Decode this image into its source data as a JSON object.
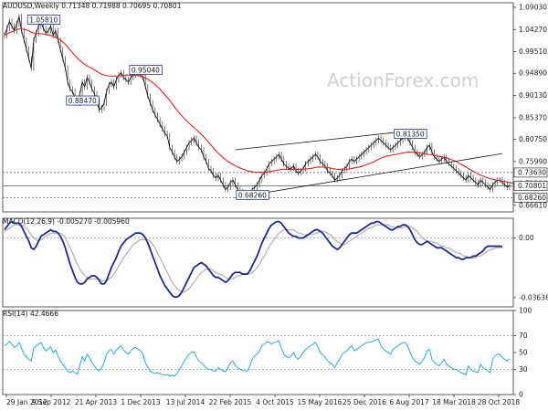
{
  "chart_data": {
    "type": "line",
    "symbol": "AUDUSD",
    "timeframe": "Weekly",
    "header_values": [
      "0.71348",
      "0.71988",
      "0.70695",
      "0.70801"
    ],
    "watermark": "ActionForex.com",
    "x_tick_labels": [
      "29 Jan 2012",
      "9 Sep 2012",
      "21 Apr 2013",
      "1 Dec 2013",
      "13 Jul 2014",
      "22 Feb 2015",
      "4 Oct 2015",
      "15 May 2016",
      "25 Dec 2016",
      "6 Aug 2017",
      "18 Mar 2018",
      "28 Oct 2018"
    ],
    "price_panel": {
      "y_tick_labels": [
        "1.09030",
        "1.04270",
        "0.99510",
        "0.94890",
        "0.90130",
        "0.85370",
        "0.80750",
        "0.75990",
        "0.71230",
        "0.66610"
      ],
      "y_ticks": [
        1.0903,
        1.0427,
        0.9951,
        0.9489,
        0.9013,
        0.8537,
        0.8075,
        0.7599,
        0.7123,
        0.6661
      ],
      "ylim": [
        0.652,
        1.1
      ],
      "price_tags": [
        {
          "label": "0.73630",
          "value": 0.7363,
          "color": "#ffffff"
        },
        {
          "label": "0.70801",
          "value": 0.70801,
          "color": "#ffffff"
        },
        {
          "label": "0.68260",
          "value": 0.6826,
          "color": "#ffffff"
        }
      ],
      "annotations": [
        {
          "label": "1.05810",
          "i": 14,
          "value": 1.0581
        },
        {
          "label": "0.95040",
          "i": 56,
          "value": 0.9504
        },
        {
          "label": "0.88470",
          "i": 30,
          "value": 0.8847
        },
        {
          "label": "0.81350",
          "i": 165,
          "value": 0.8135
        },
        {
          "label": "0.68260",
          "i": 100,
          "value": 0.6826
        }
      ],
      "close": [
        1.03,
        1.045,
        1.06,
        1.05,
        1.04,
        1.055,
        1.07,
        1.04,
        1.02,
        1.0,
        0.98,
        0.96,
        1.02,
        1.035,
        1.05,
        1.058,
        1.045,
        1.035,
        1.04,
        1.05,
        1.03,
        1.04,
        1.02,
        1.0,
        0.98,
        0.96,
        0.93,
        0.915,
        0.91,
        0.895,
        0.885,
        0.905,
        0.93,
        0.92,
        0.94,
        0.93,
        0.915,
        0.905,
        0.89,
        0.87,
        0.875,
        0.885,
        0.91,
        0.925,
        0.93,
        0.92,
        0.935,
        0.945,
        0.95,
        0.94,
        0.935,
        0.93,
        0.94,
        0.945,
        0.95,
        0.948,
        0.945,
        0.94,
        0.92,
        0.9,
        0.885,
        0.87,
        0.86,
        0.85,
        0.84,
        0.83,
        0.82,
        0.815,
        0.79,
        0.78,
        0.77,
        0.76,
        0.765,
        0.77,
        0.78,
        0.79,
        0.8,
        0.805,
        0.81,
        0.8,
        0.79,
        0.785,
        0.77,
        0.76,
        0.745,
        0.74,
        0.73,
        0.725,
        0.73,
        0.72,
        0.71,
        0.7,
        0.705,
        0.715,
        0.72,
        0.71,
        0.7,
        0.695,
        0.69,
        0.685,
        0.683,
        0.69,
        0.7,
        0.705,
        0.71,
        0.72,
        0.73,
        0.735,
        0.745,
        0.755,
        0.76,
        0.765,
        0.77,
        0.775,
        0.765,
        0.755,
        0.75,
        0.745,
        0.745,
        0.75,
        0.74,
        0.735,
        0.74,
        0.745,
        0.755,
        0.76,
        0.765,
        0.77,
        0.775,
        0.77,
        0.76,
        0.755,
        0.75,
        0.74,
        0.735,
        0.73,
        0.72,
        0.725,
        0.73,
        0.74,
        0.745,
        0.75,
        0.76,
        0.765,
        0.76,
        0.765,
        0.77,
        0.775,
        0.78,
        0.785,
        0.79,
        0.795,
        0.8,
        0.805,
        0.81,
        0.805,
        0.8,
        0.795,
        0.79,
        0.785,
        0.79,
        0.795,
        0.8,
        0.805,
        0.81,
        0.812,
        0.81,
        0.8,
        0.79,
        0.78,
        0.775,
        0.77,
        0.775,
        0.78,
        0.79,
        0.795,
        0.78,
        0.77,
        0.765,
        0.76,
        0.765,
        0.77,
        0.76,
        0.755,
        0.75,
        0.745,
        0.74,
        0.735,
        0.73,
        0.725,
        0.72,
        0.73,
        0.725,
        0.72,
        0.715,
        0.71,
        0.72,
        0.715,
        0.71,
        0.705,
        0.7,
        0.71,
        0.715,
        0.72,
        0.72,
        0.715,
        0.71,
        0.705,
        0.70801
      ],
      "ma": [
        1.03,
        1.033,
        1.036,
        1.038,
        1.04,
        1.042,
        1.044,
        1.044,
        1.043,
        1.042,
        1.04,
        1.037,
        1.035,
        1.034,
        1.034,
        1.034,
        1.033,
        1.032,
        1.031,
        1.03,
        1.028,
        1.026,
        1.023,
        1.02,
        1.016,
        1.011,
        1.005,
        0.999,
        0.993,
        0.987,
        0.981,
        0.976,
        0.972,
        0.968,
        0.965,
        0.962,
        0.959,
        0.956,
        0.953,
        0.95,
        0.947,
        0.945,
        0.944,
        0.943,
        0.943,
        0.943,
        0.943,
        0.943,
        0.944,
        0.944,
        0.945,
        0.945,
        0.945,
        0.945,
        0.945,
        0.944,
        0.943,
        0.941,
        0.939,
        0.936,
        0.933,
        0.929,
        0.925,
        0.92,
        0.915,
        0.909,
        0.903,
        0.897,
        0.891,
        0.884,
        0.877,
        0.87,
        0.864,
        0.858,
        0.852,
        0.847,
        0.842,
        0.837,
        0.833,
        0.828,
        0.823,
        0.818,
        0.813,
        0.807,
        0.801,
        0.795,
        0.789,
        0.783,
        0.778,
        0.773,
        0.768,
        0.764,
        0.76,
        0.757,
        0.754,
        0.751,
        0.748,
        0.746,
        0.744,
        0.742,
        0.74,
        0.739,
        0.738,
        0.737,
        0.737,
        0.737,
        0.737,
        0.737,
        0.737,
        0.738,
        0.739,
        0.74,
        0.741,
        0.742,
        0.743,
        0.743,
        0.743,
        0.743,
        0.743,
        0.743,
        0.743,
        0.743,
        0.743,
        0.743,
        0.744,
        0.744,
        0.745,
        0.746,
        0.747,
        0.748,
        0.748,
        0.748,
        0.748,
        0.747,
        0.746,
        0.745,
        0.744,
        0.743,
        0.743,
        0.743,
        0.743,
        0.743,
        0.744,
        0.745,
        0.746,
        0.747,
        0.748,
        0.749,
        0.751,
        0.753,
        0.755,
        0.757,
        0.759,
        0.762,
        0.765,
        0.767,
        0.769,
        0.771,
        0.772,
        0.773,
        0.774,
        0.775,
        0.776,
        0.777,
        0.778,
        0.779,
        0.78,
        0.78,
        0.78,
        0.78,
        0.779,
        0.778,
        0.777,
        0.776,
        0.775,
        0.775,
        0.774,
        0.773,
        0.772,
        0.771,
        0.77,
        0.769,
        0.768,
        0.766,
        0.764,
        0.762,
        0.76,
        0.757,
        0.754,
        0.751,
        0.748,
        0.745,
        0.742,
        0.739,
        0.736,
        0.733,
        0.731,
        0.729,
        0.727,
        0.725,
        0.723,
        0.722,
        0.721,
        0.72,
        0.719,
        0.718,
        0.717,
        0.716,
        0.715,
        0.714,
        0.713
      ],
      "trendlines": [
        {
          "i0": 95,
          "v0": 0.6826,
          "i1": 205,
          "v1": 0.777
        },
        {
          "i0": 95,
          "v0": 0.785,
          "i1": 165,
          "v1": 0.8245
        }
      ]
    },
    "macd_panel": {
      "label": "MACD(12,26,9) -0.005270 -0.005960",
      "y_tick_labels": [
        "0.00",
        "-0.036389"
      ],
      "y_ticks": [
        0.0,
        -0.036389
      ],
      "ylim": [
        -0.042,
        0.012
      ],
      "macd": [
        0.005,
        0.007,
        0.009,
        0.01,
        0.009,
        0.009,
        0.009,
        0.007,
        0.004,
        0.001,
        -0.002,
        -0.006,
        -0.007,
        -0.005,
        -0.002,
        0.001,
        0.002,
        0.003,
        0.004,
        0.005,
        0.004,
        0.004,
        0.003,
        0.001,
        -0.002,
        -0.006,
        -0.011,
        -0.016,
        -0.02,
        -0.024,
        -0.027,
        -0.028,
        -0.028,
        -0.027,
        -0.025,
        -0.024,
        -0.023,
        -0.023,
        -0.024,
        -0.026,
        -0.028,
        -0.028,
        -0.026,
        -0.022,
        -0.018,
        -0.015,
        -0.012,
        -0.008,
        -0.005,
        -0.003,
        -0.001,
        0.0,
        0.001,
        0.002,
        0.003,
        0.003,
        0.003,
        0.002,
        0.0,
        -0.003,
        -0.007,
        -0.011,
        -0.015,
        -0.019,
        -0.023,
        -0.026,
        -0.029,
        -0.031,
        -0.033,
        -0.035,
        -0.036,
        -0.036,
        -0.035,
        -0.033,
        -0.03,
        -0.027,
        -0.024,
        -0.021,
        -0.018,
        -0.017,
        -0.016,
        -0.015,
        -0.016,
        -0.017,
        -0.019,
        -0.021,
        -0.023,
        -0.024,
        -0.024,
        -0.025,
        -0.026,
        -0.027,
        -0.026,
        -0.024,
        -0.022,
        -0.021,
        -0.021,
        -0.021,
        -0.022,
        -0.022,
        -0.022,
        -0.02,
        -0.017,
        -0.014,
        -0.011,
        -0.007,
        -0.003,
        0.0,
        0.003,
        0.006,
        0.008,
        0.009,
        0.01,
        0.01,
        0.009,
        0.007,
        0.005,
        0.003,
        0.002,
        0.001,
        0.001,
        0.0,
        0.0,
        0.0,
        0.001,
        0.002,
        0.003,
        0.004,
        0.005,
        0.005,
        0.004,
        0.003,
        0.001,
        -0.001,
        -0.003,
        -0.005,
        -0.006,
        -0.007,
        -0.006,
        -0.004,
        -0.002,
        0.0,
        0.002,
        0.003,
        0.003,
        0.003,
        0.004,
        0.005,
        0.006,
        0.007,
        0.008,
        0.009,
        0.009,
        0.01,
        0.01,
        0.009,
        0.008,
        0.007,
        0.006,
        0.005,
        0.005,
        0.006,
        0.007,
        0.007,
        0.008,
        0.008,
        0.007,
        0.005,
        0.002,
        -0.001,
        -0.003,
        -0.004,
        -0.004,
        -0.003,
        -0.002,
        -0.003,
        -0.004,
        -0.005,
        -0.006,
        -0.006,
        -0.006,
        -0.007,
        -0.008,
        -0.009,
        -0.01,
        -0.011,
        -0.012,
        -0.012,
        -0.013,
        -0.013,
        -0.012,
        -0.012,
        -0.012,
        -0.011,
        -0.011,
        -0.01,
        -0.009,
        -0.008,
        -0.006,
        -0.005,
        -0.005,
        -0.005,
        -0.005,
        -0.005,
        -0.005,
        -0.00527
      ],
      "signal": [
        0.004,
        0.005,
        0.006,
        0.007,
        0.008,
        0.008,
        0.008,
        0.008,
        0.007,
        0.006,
        0.004,
        0.002,
        0.0,
        -0.001,
        -0.002,
        -0.001,
        0.0,
        0.001,
        0.002,
        0.003,
        0.003,
        0.003,
        0.003,
        0.003,
        0.002,
        0.0,
        -0.003,
        -0.006,
        -0.009,
        -0.013,
        -0.016,
        -0.019,
        -0.021,
        -0.023,
        -0.024,
        -0.025,
        -0.025,
        -0.025,
        -0.025,
        -0.025,
        -0.026,
        -0.026,
        -0.026,
        -0.025,
        -0.024,
        -0.022,
        -0.02,
        -0.017,
        -0.015,
        -0.012,
        -0.01,
        -0.008,
        -0.006,
        -0.004,
        -0.003,
        -0.002,
        -0.001,
        -0.001,
        -0.001,
        -0.001,
        -0.002,
        -0.004,
        -0.006,
        -0.009,
        -0.012,
        -0.015,
        -0.018,
        -0.021,
        -0.024,
        -0.027,
        -0.029,
        -0.031,
        -0.032,
        -0.033,
        -0.033,
        -0.032,
        -0.031,
        -0.029,
        -0.027,
        -0.025,
        -0.023,
        -0.021,
        -0.02,
        -0.019,
        -0.019,
        -0.019,
        -0.02,
        -0.021,
        -0.022,
        -0.022,
        -0.023,
        -0.024,
        -0.025,
        -0.025,
        -0.025,
        -0.024,
        -0.023,
        -0.023,
        -0.022,
        -0.022,
        -0.022,
        -0.022,
        -0.021,
        -0.02,
        -0.018,
        -0.016,
        -0.013,
        -0.011,
        -0.008,
        -0.005,
        -0.003,
        -0.001,
        0.001,
        0.003,
        0.004,
        0.005,
        0.005,
        0.005,
        0.005,
        0.005,
        0.004,
        0.003,
        0.003,
        0.002,
        0.002,
        0.002,
        0.002,
        0.002,
        0.003,
        0.003,
        0.004,
        0.004,
        0.004,
        0.003,
        0.002,
        0.001,
        -0.001,
        -0.002,
        -0.003,
        -0.004,
        -0.004,
        -0.003,
        -0.002,
        -0.001,
        0.0,
        0.001,
        0.002,
        0.003,
        0.004,
        0.005,
        0.006,
        0.006,
        0.007,
        0.008,
        0.008,
        0.008,
        0.008,
        0.008,
        0.008,
        0.007,
        0.007,
        0.006,
        0.006,
        0.006,
        0.006,
        0.007,
        0.007,
        0.007,
        0.006,
        0.005,
        0.004,
        0.002,
        0.0,
        -0.001,
        -0.002,
        -0.002,
        -0.002,
        -0.003,
        -0.003,
        -0.004,
        -0.005,
        -0.005,
        -0.006,
        -0.006,
        -0.007,
        -0.008,
        -0.009,
        -0.009,
        -0.01,
        -0.011,
        -0.011,
        -0.012,
        -0.012,
        -0.012,
        -0.012,
        -0.011,
        -0.011,
        -0.01,
        -0.009,
        -0.008,
        -0.007,
        -0.007,
        -0.006,
        -0.006,
        -0.006,
        -0.00596
      ]
    },
    "rsi_panel": {
      "label": "RSI(14) 42.4666",
      "y_tick_labels": [
        "100",
        "70",
        "50",
        "30",
        "0"
      ],
      "y_ticks": [
        100,
        70,
        50,
        30,
        0
      ],
      "ylim": [
        0,
        100
      ],
      "levels": [
        70,
        30
      ],
      "rsi": [
        58,
        60,
        63,
        60,
        56,
        58,
        62,
        55,
        48,
        45,
        42,
        40,
        55,
        58,
        60,
        62,
        56,
        52,
        54,
        57,
        50,
        53,
        46,
        40,
        36,
        32,
        28,
        26,
        28,
        26,
        24,
        35,
        45,
        40,
        48,
        44,
        38,
        34,
        30,
        28,
        32,
        38,
        48,
        52,
        54,
        48,
        53,
        56,
        58,
        53,
        50,
        48,
        52,
        55,
        56,
        54,
        52,
        48,
        38,
        32,
        28,
        26,
        25,
        26,
        25,
        24,
        23,
        24,
        22,
        23,
        22,
        25,
        30,
        34,
        40,
        44,
        48,
        50,
        51,
        45,
        40,
        38,
        35,
        32,
        30,
        30,
        28,
        28,
        32,
        30,
        28,
        27,
        32,
        38,
        40,
        35,
        32,
        30,
        29,
        28,
        28,
        34,
        42,
        46,
        48,
        52,
        58,
        60,
        63,
        62,
        60,
        62,
        63,
        64,
        55,
        48,
        45,
        44,
        46,
        50,
        44,
        42,
        46,
        50,
        54,
        56,
        58,
        60,
        62,
        57,
        50,
        47,
        45,
        40,
        38,
        36,
        32,
        38,
        42,
        48,
        50,
        52,
        56,
        58,
        52,
        54,
        56,
        58,
        60,
        62,
        62,
        63,
        64,
        65,
        66,
        58,
        54,
        52,
        50,
        48,
        54,
        56,
        58,
        60,
        62,
        62,
        58,
        50,
        44,
        40,
        38,
        36,
        40,
        44,
        52,
        54,
        42,
        38,
        36,
        34,
        38,
        42,
        36,
        34,
        32,
        30,
        30,
        28,
        26,
        25,
        24,
        34,
        30,
        28,
        27,
        26,
        36,
        32,
        30,
        28,
        26,
        42,
        46,
        48,
        48,
        44,
        42,
        40,
        42.4666
      ]
    }
  }
}
